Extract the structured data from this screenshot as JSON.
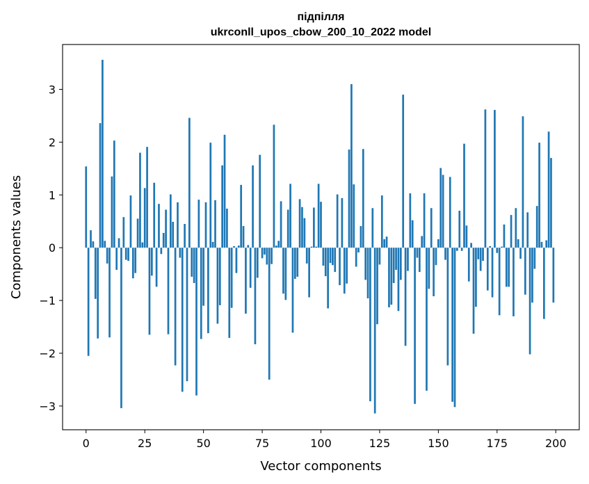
{
  "chart_data": {
    "type": "bar",
    "title": "підпілля",
    "subtitle": "ukrconll_upos_cbow_200_10_2022 model",
    "xlabel": "Vector components",
    "ylabel": "Components values",
    "xlim": [
      -10,
      210
    ],
    "ylim": [
      -3.45,
      3.85
    ],
    "xticks": [
      0,
      25,
      50,
      75,
      100,
      125,
      150,
      175,
      200
    ],
    "yticks": [
      -3,
      -2,
      -1,
      0,
      1,
      2,
      3
    ],
    "ytick_labels": [
      "−3",
      "−2",
      "−1",
      "0",
      "1",
      "2",
      "3"
    ],
    "grid": false,
    "legend": "none",
    "bar_color": "#1f77b4",
    "series": [
      {
        "values": [
          1.54,
          -2.05,
          0.33,
          0.12,
          -0.97,
          -1.72,
          2.36,
          3.56,
          0.13,
          -0.3,
          -1.7,
          1.35,
          2.03,
          -0.42,
          0.18,
          -3.04,
          0.58,
          -0.23,
          -0.25,
          0.99,
          -0.58,
          -0.48,
          0.55,
          1.8,
          0.1,
          1.13,
          1.91,
          -1.65,
          -0.53,
          1.23,
          -0.74,
          0.83,
          -0.12,
          0.28,
          0.72,
          -1.64,
          1.01,
          0.49,
          -2.23,
          0.86,
          -0.19,
          -2.73,
          0.45,
          -2.53,
          2.46,
          -0.55,
          -0.67,
          -2.8,
          0.91,
          -1.73,
          -1.1,
          0.86,
          -1.62,
          1.99,
          0.11,
          0.9,
          -1.44,
          -1.09,
          1.56,
          2.14,
          0.74,
          -1.71,
          -1.14,
          0.03,
          -0.48,
          0.04,
          1.19,
          0.41,
          -1.25,
          0.05,
          -0.76,
          1.56,
          -1.83,
          -0.57,
          1.76,
          -0.2,
          -0.13,
          -0.32,
          -2.5,
          -0.31,
          2.33,
          0.04,
          0.13,
          0.88,
          -0.87,
          -0.99,
          0.72,
          1.21,
          -1.61,
          -0.59,
          -0.55,
          0.92,
          0.77,
          0.56,
          -0.3,
          -0.94,
          0.02,
          0.76,
          0.02,
          1.21,
          0.87,
          -0.34,
          -0.54,
          -1.15,
          -0.29,
          -0.33,
          -0.46,
          1.01,
          -0.71,
          0.94,
          -0.87,
          -0.68,
          1.86,
          3.1,
          1.2,
          -0.36,
          -0.09,
          0.41,
          1.87,
          -0.61,
          -0.96,
          -2.91,
          0.75,
          -3.14,
          -1.45,
          -0.32,
          0.99,
          0.16,
          0.21,
          -1.13,
          -1.08,
          -0.67,
          -0.42,
          -1.2,
          -0.61,
          2.9,
          -1.86,
          -0.44,
          1.03,
          0.52,
          -2.96,
          -0.19,
          -0.46,
          0.22,
          1.03,
          -2.71,
          -0.78,
          0.75,
          -0.92,
          -0.33,
          0.16,
          1.51,
          1.38,
          -0.23,
          -2.23,
          1.34,
          -2.92,
          -3.02,
          -0.06,
          0.7,
          -0.06,
          1.97,
          0.42,
          -0.64,
          0.09,
          -1.63,
          -1.12,
          -0.22,
          -0.44,
          -0.25,
          2.62,
          -0.81,
          0.03,
          -0.94,
          2.61,
          -0.1,
          -1.28,
          0.02,
          0.44,
          -0.74,
          -0.74,
          0.62,
          -1.3,
          0.75,
          0.16,
          -0.21,
          2.49,
          -0.89,
          0.67,
          -2.02,
          -1.04,
          -0.4,
          0.79,
          1.99,
          0.11,
          -1.35,
          0.14,
          2.2,
          1.7,
          -1.04
        ]
      }
    ]
  }
}
